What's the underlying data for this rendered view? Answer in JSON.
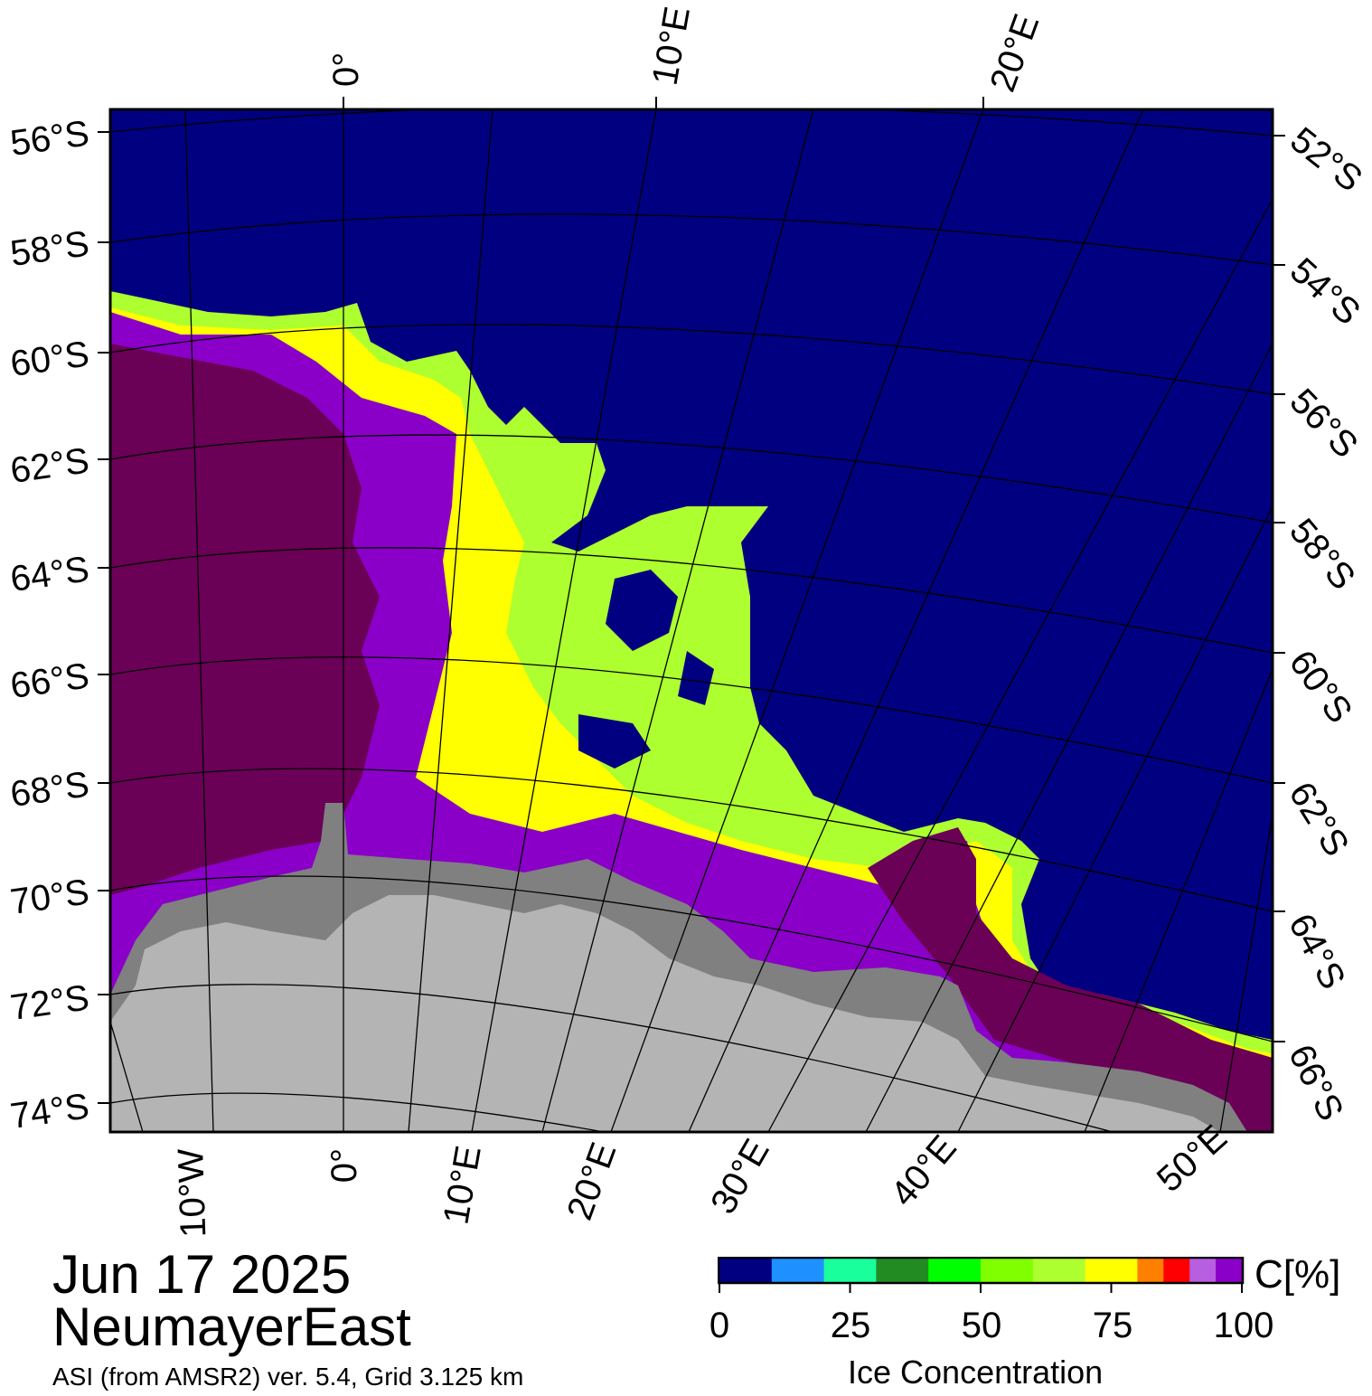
{
  "title": {
    "date": "Jun 17 2025",
    "region": "NeumayerEast",
    "source": "ASI (from AMSR2) ver. 5.4,  Grid 3.125 km"
  },
  "colorbar": {
    "title": "Ice Concentration",
    "unit_label": "C[%]",
    "ticks": [
      "0",
      "25",
      "50",
      "75",
      "100"
    ],
    "range": [
      0,
      100
    ],
    "bins": [
      {
        "from": 0,
        "to": 10,
        "color": "#000080"
      },
      {
        "from": 10,
        "to": 20,
        "color": "#1e90ff"
      },
      {
        "from": 20,
        "to": 30,
        "color": "#19ff9b"
      },
      {
        "from": 30,
        "to": 40,
        "color": "#228b22"
      },
      {
        "from": 40,
        "to": 50,
        "color": "#00ff00"
      },
      {
        "from": 50,
        "to": 60,
        "color": "#7fff00"
      },
      {
        "from": 60,
        "to": 70,
        "color": "#adff2f"
      },
      {
        "from": 70,
        "to": 80,
        "color": "#ffff00"
      },
      {
        "from": 80,
        "to": 85,
        "color": "#ff7f00"
      },
      {
        "from": 85,
        "to": 90,
        "color": "#ff0000"
      },
      {
        "from": 90,
        "to": 95,
        "color": "#b85ee0"
      },
      {
        "from": 95,
        "to": 100,
        "color": "#8b00c8"
      }
    ]
  },
  "map": {
    "colors": {
      "ocean": "#000080",
      "land": "#b4b4b4",
      "ice_shelf": "#808080",
      "ice_solid": "#6b0057",
      "ice_purple": "#8b00c8",
      "grid": "#000000"
    },
    "top_longitude_labels": [
      "0°",
      "10°E",
      "20°E"
    ],
    "bottom_longitude_labels": [
      "10°W",
      "0°",
      "10°E",
      "20°E",
      "30°E",
      "40°E",
      "50°E"
    ],
    "left_latitude_labels": [
      "56°S",
      "58°S",
      "60°S",
      "62°S",
      "64°S",
      "66°S",
      "68°S",
      "70°S",
      "72°S",
      "74°S"
    ],
    "right_latitude_labels": [
      "52°S",
      "54°S",
      "56°S",
      "58°S",
      "60°S",
      "62°S",
      "64°S",
      "66°S"
    ]
  }
}
